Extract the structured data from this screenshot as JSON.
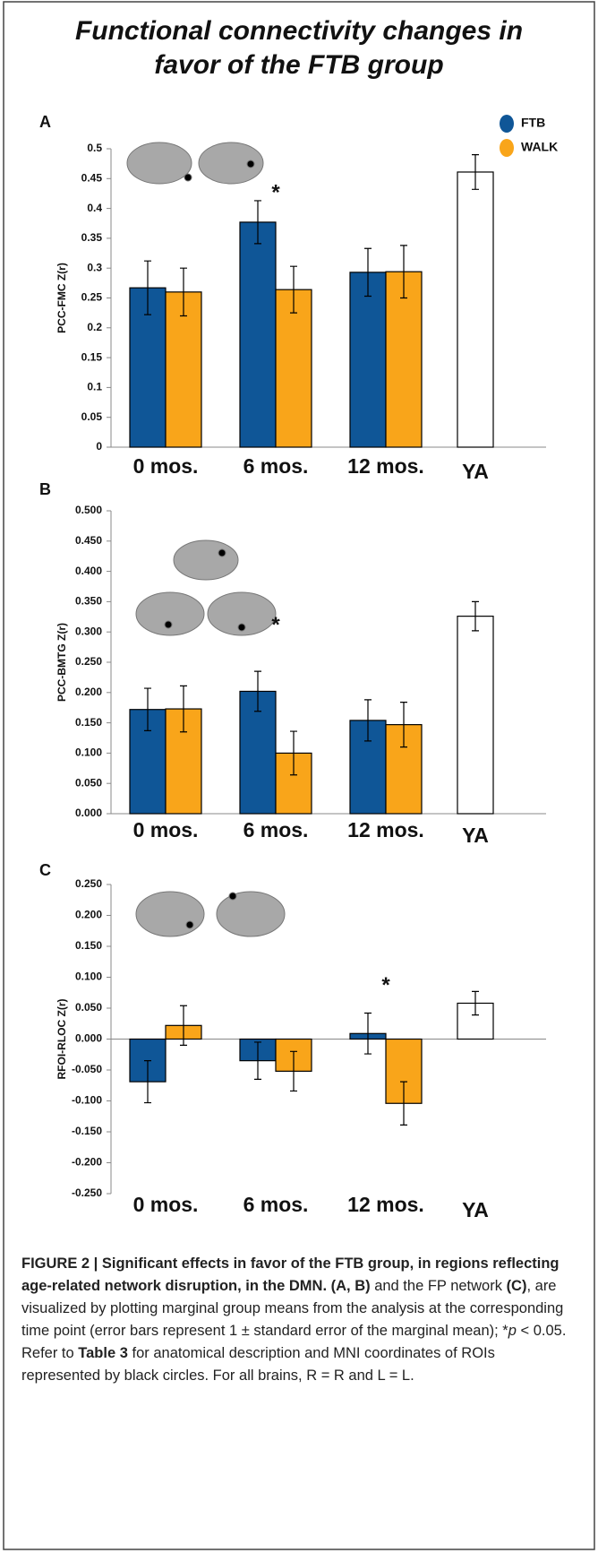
{
  "title_lines": [
    "Functional connectivity changes in",
    "favor of the FTB group"
  ],
  "chart_data": [
    {
      "type": "bar",
      "panel": "A",
      "ylabel": "PCC-FMC Z(r)",
      "categories": [
        "0 mos.",
        "6 mos.",
        "12 mos.",
        "YA"
      ],
      "ylim": [
        0,
        0.5
      ],
      "yticks": [
        0,
        0.05,
        0.1,
        0.15,
        0.2,
        0.25,
        0.3,
        0.35,
        0.4,
        0.45,
        0.5
      ],
      "legend": "top-right",
      "series": [
        {
          "name": "FTB",
          "color": "#0f5697",
          "values": [
            0.267,
            0.377,
            0.293,
            null
          ],
          "errors": [
            0.045,
            0.036,
            0.04,
            null
          ]
        },
        {
          "name": "WALK",
          "color": "#f9a51a",
          "values": [
            0.26,
            0.264,
            0.294,
            null
          ],
          "errors": [
            0.04,
            0.039,
            0.044,
            null
          ]
        },
        {
          "color": "#ffffff",
          "values": [
            null,
            null,
            null,
            0.461
          ],
          "errors": [
            null,
            null,
            null,
            0.029
          ]
        }
      ],
      "annotations": [
        {
          "text": "*",
          "x": "6 mos.",
          "y": 0.425
        }
      ]
    },
    {
      "type": "bar",
      "panel": "B",
      "ylabel": "PCC-BMTG  Z(r)",
      "categories": [
        "0 mos.",
        "6 mos.",
        "12 mos.",
        "YA"
      ],
      "ylim": [
        0,
        0.5
      ],
      "yticks": [
        {
          "value": 0,
          "label": "0.000"
        },
        {
          "value": 0.05,
          "label": "0.050"
        },
        {
          "value": 0.1,
          "label": "0.100"
        },
        {
          "value": 0.15,
          "label": "0.150"
        },
        {
          "value": 0.2,
          "label": "0.200"
        },
        {
          "value": 0.25,
          "label": "0.250"
        },
        {
          "value": 0.3,
          "label": "0.300"
        },
        {
          "value": 0.35,
          "label": "0.350"
        },
        {
          "value": 0.4,
          "label": "0.400"
        },
        {
          "value": 0.45,
          "label": "0.450"
        },
        {
          "value": 0.5,
          "label": "0.500"
        }
      ],
      "series": [
        {
          "name": "FTB",
          "color": "#0f5697",
          "values": [
            0.172,
            0.202,
            0.154,
            null
          ],
          "errors": [
            0.035,
            0.033,
            0.034,
            null
          ]
        },
        {
          "name": "WALK",
          "color": "#f9a51a",
          "values": [
            0.173,
            0.1,
            0.147,
            null
          ],
          "errors": [
            0.038,
            0.036,
            0.037,
            null
          ]
        },
        {
          "color": "#ffffff",
          "values": [
            null,
            null,
            null,
            0.326
          ],
          "errors": [
            null,
            null,
            null,
            0.024
          ]
        }
      ],
      "annotations": [
        {
          "text": "*",
          "x": "6 mos.",
          "y": 0.31
        }
      ]
    },
    {
      "type": "bar",
      "panel": "C",
      "ylabel": "RFOI-RLOC  Z(r)",
      "categories": [
        "0 mos.",
        "6 mos.",
        "12 mos.",
        "YA"
      ],
      "ylim": [
        -0.25,
        0.25
      ],
      "yticks": [
        {
          "value": -0.25,
          "label": "-0.250"
        },
        {
          "value": -0.2,
          "label": "-0.200"
        },
        {
          "value": -0.15,
          "label": "-0.150"
        },
        {
          "value": -0.1,
          "label": "-0.100"
        },
        {
          "value": -0.05,
          "label": "-0.050"
        },
        {
          "value": 0,
          "label": "0.000"
        },
        {
          "value": 0.05,
          "label": "0.050"
        },
        {
          "value": 0.1,
          "label": "0.100"
        },
        {
          "value": 0.15,
          "label": "0.150"
        },
        {
          "value": 0.2,
          "label": "0.200"
        },
        {
          "value": 0.25,
          "label": "0.250"
        }
      ],
      "series": [
        {
          "name": "FTB",
          "color": "#0f5697",
          "values": [
            -0.069,
            -0.035,
            0.009,
            null
          ],
          "errors": [
            0.034,
            0.03,
            0.033,
            null
          ]
        },
        {
          "name": "WALK",
          "color": "#f9a51a",
          "values": [
            0.022,
            -0.052,
            -0.104,
            null
          ],
          "errors": [
            0.032,
            0.032,
            0.035,
            null
          ]
        },
        {
          "color": "#ffffff",
          "values": [
            null,
            null,
            null,
            0.058
          ],
          "errors": [
            null,
            null,
            null,
            0.019
          ]
        }
      ],
      "annotations": [
        {
          "text": "*",
          "x": "12 mos.",
          "y": 0.085
        }
      ]
    }
  ],
  "caption": [
    {
      "text": "FIGURE 2 | Significant effects in favor of the FTB group, in regions reflecting age-related network disruption, in the DMN. (A, B)",
      "bold": true
    },
    {
      "text": " and the FP network "
    },
    {
      "text": "(C)",
      "bold": true
    },
    {
      "text": ", are visualized by plotting marginal group means from the analysis at the corresponding time point (error bars represent 1 ± standard error of the marginal mean); *"
    },
    {
      "text": "p",
      "italic": true
    },
    {
      "text": " < 0.05. Refer to "
    },
    {
      "text": "Table 3",
      "bold": true
    },
    {
      "text": " for anatomical description and MNI coordinates of ROIs represented by black circles. For all brains, R = R and L = L."
    }
  ]
}
